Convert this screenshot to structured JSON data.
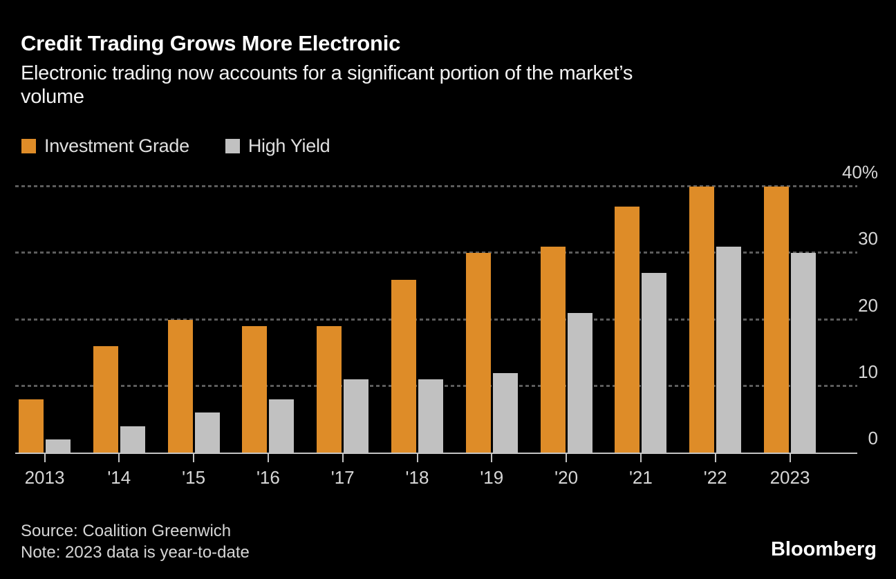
{
  "header": {
    "title": "Credit Trading Grows More Electronic",
    "subtitle": "Electronic trading now accounts for a significant portion of the market’s volume",
    "subtitle_lines": [
      "Electronic trading now accounts for a significant portion of the market’s",
      "volume"
    ]
  },
  "legend": {
    "items": [
      {
        "label": "Investment Grade",
        "color": "#de8c28"
      },
      {
        "label": "High Yield",
        "color": "#c1c1c1"
      }
    ]
  },
  "chart_data": {
    "type": "bar",
    "title": "Credit Trading Grows More Electronic",
    "subtitle": "Electronic trading now accounts for a significant portion of the market’s volume",
    "categories": [
      "2013",
      "'14",
      "'15",
      "'16",
      "'17",
      "'18",
      "'19",
      "'20",
      "'21",
      "'22",
      "2023"
    ],
    "series": [
      {
        "name": "Investment Grade",
        "color": "#de8c28",
        "values": [
          8,
          16,
          20,
          19,
          19,
          26,
          30,
          31,
          37,
          40,
          40
        ]
      },
      {
        "name": "High Yield",
        "color": "#c1c1c1",
        "values": [
          2,
          4,
          6,
          8,
          11,
          11,
          12,
          21,
          27,
          31,
          30
        ]
      }
    ],
    "unit": "%",
    "ylim": [
      0,
      40
    ],
    "y_ticks": [
      0,
      10,
      20,
      30,
      40
    ],
    "y_tick_labels": [
      "0",
      "10",
      "20",
      "30",
      "40%"
    ],
    "grid": "horizontal-dotted",
    "gridline_color": "#5c5c5c",
    "axis_color": "#c4c4c4",
    "background_color": "#000000",
    "legend_position": "top-left",
    "y_axis_label_position": "right"
  },
  "footer": {
    "source": "Source: Coalition Greenwich",
    "note": "Note: 2023 data is year-to-date",
    "brand": "Bloomberg"
  }
}
